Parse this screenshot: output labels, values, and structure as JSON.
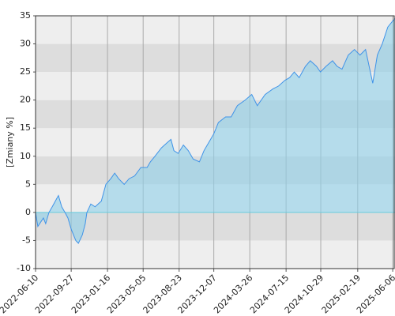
{
  "chart_data": {
    "type": "area",
    "y_label": "[Zmiany %]",
    "x": [
      "2022-06-10",
      "2022-06-17",
      "2022-07-04",
      "2022-07-11",
      "2022-07-21",
      "2022-07-31",
      "2022-08-14",
      "2022-08-19",
      "2022-08-29",
      "2022-09-08",
      "2022-09-17",
      "2022-09-27",
      "2022-10-11",
      "2022-10-19",
      "2022-10-31",
      "2022-11-09",
      "2022-11-14",
      "2022-11-26",
      "2022-12-09",
      "2022-12-28",
      "2023-01-11",
      "2023-01-26",
      "2023-02-07",
      "2023-02-19",
      "2023-03-08",
      "2023-03-23",
      "2023-04-09",
      "2023-04-28",
      "2023-05-17",
      "2023-05-27",
      "2023-06-10",
      "2023-06-30",
      "2023-07-19",
      "2023-07-29",
      "2023-08-07",
      "2023-08-20",
      "2023-09-05",
      "2023-09-20",
      "2023-10-05",
      "2023-10-24",
      "2023-11-07",
      "2023-11-27",
      "2023-12-07",
      "2023-12-21",
      "2024-01-12",
      "2024-01-29",
      "2024-02-17",
      "2024-03-12",
      "2024-04-01",
      "2024-04-18",
      "2024-05-12",
      "2024-06-05",
      "2024-06-22",
      "2024-07-11",
      "2024-07-26",
      "2024-08-09",
      "2024-08-24",
      "2024-09-12",
      "2024-09-27",
      "2024-10-16",
      "2024-10-28",
      "2024-11-14",
      "2024-12-04",
      "2024-12-18",
      "2025-01-02",
      "2025-01-21",
      "2025-02-09",
      "2025-02-26",
      "2025-03-15",
      "2025-04-06",
      "2025-04-20",
      "2025-05-05",
      "2025-05-22",
      "2025-06-05",
      "2025-06-13"
    ],
    "values": [
      0,
      -2.5,
      -1,
      -2,
      0,
      1,
      2.5,
      3,
      1,
      0,
      -1,
      -3,
      -5,
      -5.5,
      -4,
      -2,
      0,
      1.5,
      1,
      2,
      5,
      6,
      7,
      6,
      5,
      6,
      6.5,
      8,
      8,
      9,
      10,
      11.5,
      12.5,
      13,
      11,
      10.5,
      12,
      11,
      9.5,
      9,
      11,
      13,
      14,
      16,
      17,
      17,
      19,
      20,
      21,
      19,
      21,
      22,
      22.5,
      23.5,
      24,
      25,
      24,
      26,
      27,
      26,
      25,
      26,
      27,
      26,
      25.5,
      28,
      29,
      28,
      29,
      23,
      28,
      30,
      33,
      34,
      34.5
    ],
    "line_color": "#3f93e8",
    "fill_color": "#8fd0ea",
    "xlim": [
      "2022-06-10",
      "2025-06-13"
    ],
    "xticks": [
      "2022-06-10",
      "2022-09-27",
      "2023-01-16",
      "2023-05-05",
      "2023-08-23",
      "2023-12-07",
      "2024-03-26",
      "2024-07-15",
      "2024-10-29",
      "2025-02-19",
      "2025-06-06"
    ],
    "ylim": [
      -10,
      35
    ],
    "yticks": [
      -10,
      -5,
      0,
      5,
      10,
      15,
      20,
      25,
      30,
      35
    ],
    "grid": true
  }
}
